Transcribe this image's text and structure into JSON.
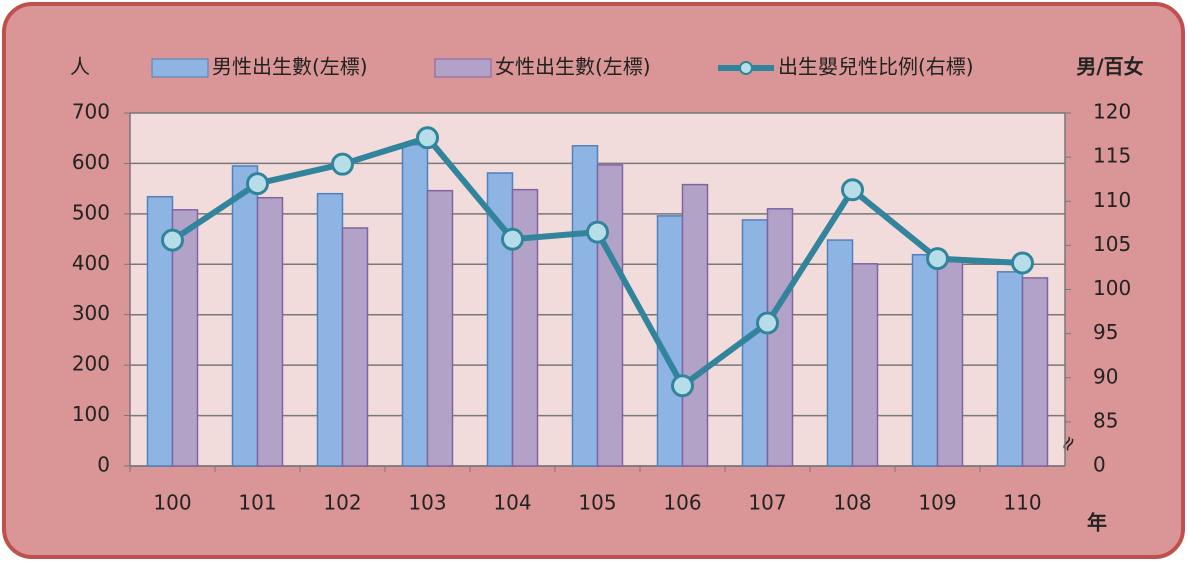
{
  "chart_data": {
    "type": "bar_line",
    "y_label": "人",
    "y2_label": "男/百女",
    "x_label": "年",
    "categories": [
      "100",
      "101",
      "102",
      "103",
      "104",
      "105",
      "106",
      "107",
      "108",
      "109",
      "110"
    ],
    "series": [
      {
        "name": "男性出生數(左標)",
        "type": "bar",
        "color": "#8db4e2",
        "stroke": "#4f81bd",
        "values": [
          534,
          595,
          540,
          637,
          581,
          635,
          496,
          488,
          448,
          419,
          385
        ]
      },
      {
        "name": "女性出生數(左標)",
        "type": "bar",
        "color": "#b3a2c7",
        "stroke": "#8064a2",
        "values": [
          508,
          532,
          472,
          546,
          548,
          597,
          558,
          510,
          401,
          405,
          373
        ]
      },
      {
        "name": "出生嬰兒性比例(右標)",
        "type": "line",
        "axis": "y2",
        "color": "#31849b",
        "marker_color": "#b7dee8",
        "values": [
          105.6,
          112.0,
          114.2,
          117.2,
          105.7,
          106.5,
          89.1,
          96.2,
          111.3,
          103.5,
          103.0
        ]
      }
    ],
    "ylim": [
      0,
      700
    ],
    "yticks": [
      0,
      100,
      200,
      300,
      400,
      500,
      600,
      700
    ],
    "y2lim": [
      80,
      120
    ],
    "y2ticks": [
      85,
      90,
      95,
      100,
      105,
      110,
      115,
      120
    ],
    "y2_axis_break": {
      "label": "0",
      "symbol": "≈"
    },
    "grid": true
  }
}
